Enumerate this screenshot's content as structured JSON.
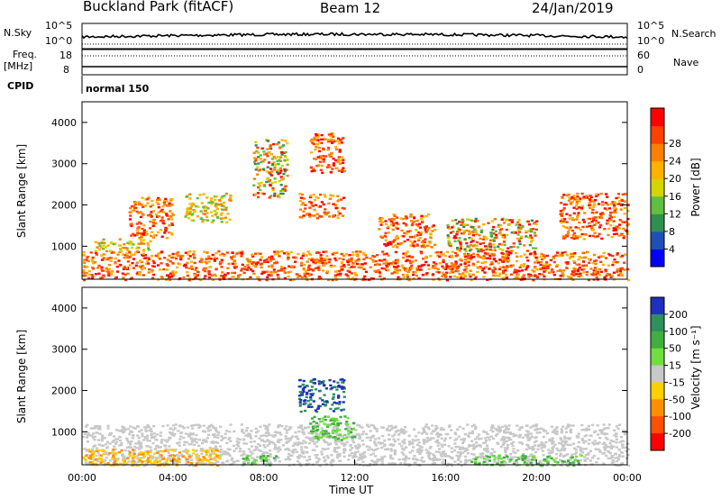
{
  "header": {
    "site": "Buckland Park (fitACF)",
    "beam": "Beam 12",
    "date": "24/Jan/2019"
  },
  "top_panel": {
    "nsky_label": "N.Sky",
    "nsky_ticks": [
      "10^5",
      "10^0"
    ],
    "nsearch_label": "N.Search",
    "nsearch_ticks": [
      "10^5",
      "10^0"
    ],
    "freq_label": "Freq.",
    "freq_unit": "[MHz]",
    "freq_ticks": [
      "18",
      "8"
    ],
    "nave_label": "Nave",
    "nave_ticks": [
      "60",
      "0"
    ],
    "cpid_label": "CPID",
    "cpid_value": "normal 150"
  },
  "colors": {
    "power_scale": [
      "#0000ff",
      "#1e4fb4",
      "#2f8f4f",
      "#5fbf3f",
      "#d4d400",
      "#ffb000",
      "#ff7f00",
      "#ff4000",
      "#ff0000"
    ],
    "velocity_scale": [
      "#1f2fbf",
      "#2f8f5f",
      "#3faf3f",
      "#6fdf3f",
      "#c8c8c8",
      "#ffcf00",
      "#ff8f00",
      "#ff4f00",
      "#ff0000"
    ]
  },
  "chart_data": [
    {
      "type": "heatmap",
      "id": "power",
      "ylabel": "Slant Range [km]",
      "ylim": [
        200,
        4500
      ],
      "yticks": [
        "1000",
        "2000",
        "3000",
        "4000"
      ],
      "xlim": [
        "00:00",
        "00:00"
      ],
      "colorbar_label": "Power [dB]",
      "colorbar_ticks": [
        "4",
        "8",
        "12",
        "16",
        "20",
        "24",
        "28"
      ],
      "features": [
        {
          "t": [
            0.0,
            24.0
          ],
          "r": [
            200,
            900
          ],
          "level": "high"
        },
        {
          "t": [
            0.5,
            3.0
          ],
          "r": [
            900,
            1200
          ],
          "level": "mid"
        },
        {
          "t": [
            2.0,
            4.0
          ],
          "r": [
            1200,
            2200
          ],
          "level": "high"
        },
        {
          "t": [
            4.5,
            6.5
          ],
          "r": [
            1600,
            2300
          ],
          "level": "mid"
        },
        {
          "t": [
            7.5,
            9.0
          ],
          "r": [
            2200,
            3600
          ],
          "level": "mixed"
        },
        {
          "t": [
            9.5,
            11.5
          ],
          "r": [
            1700,
            2300
          ],
          "level": "high"
        },
        {
          "t": [
            10.0,
            11.5
          ],
          "r": [
            2800,
            3800
          ],
          "level": "high"
        },
        {
          "t": [
            13.0,
            15.5
          ],
          "r": [
            1000,
            1800
          ],
          "level": "high"
        },
        {
          "t": [
            16.0,
            20.0
          ],
          "r": [
            900,
            1700
          ],
          "level": "mixed"
        },
        {
          "t": [
            21.0,
            24.0
          ],
          "r": [
            1200,
            2300
          ],
          "level": "high"
        }
      ]
    },
    {
      "type": "heatmap",
      "id": "velocity",
      "ylabel": "Slant Range [km]",
      "ylim": [
        200,
        4500
      ],
      "yticks": [
        "1000",
        "2000",
        "3000",
        "4000"
      ],
      "xticks": [
        "00:00",
        "04:00",
        "08:00",
        "12:00",
        "16:00",
        "20:00",
        "00:00"
      ],
      "xlabel": "Time UT",
      "colorbar_label": "Velocity [m s⁻¹]",
      "colorbar_ticks": [
        "200",
        "100",
        "50",
        "15",
        "-15",
        "-50",
        "-100",
        "-200"
      ],
      "features": [
        {
          "t": [
            0.0,
            24.0
          ],
          "r": [
            200,
            1200
          ],
          "level": "grey"
        },
        {
          "t": [
            0.0,
            6.0
          ],
          "r": [
            200,
            600
          ],
          "level": "orange"
        },
        {
          "t": [
            7.0,
            8.5
          ],
          "r": [
            200,
            450
          ],
          "level": "green"
        },
        {
          "t": [
            9.5,
            11.5
          ],
          "r": [
            1500,
            2300
          ],
          "level": "blue"
        },
        {
          "t": [
            10.0,
            12.0
          ],
          "r": [
            800,
            1400
          ],
          "level": "green"
        },
        {
          "t": [
            17.0,
            22.0
          ],
          "r": [
            200,
            450
          ],
          "level": "green"
        }
      ]
    }
  ]
}
